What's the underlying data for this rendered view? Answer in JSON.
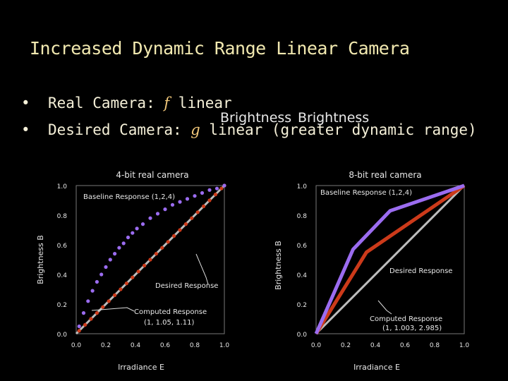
{
  "slide": {
    "title": "Increased Dynamic Range Linear Camera",
    "bullets": [
      {
        "dot": "•",
        "prefix": "Real Camera: ",
        "var": "f",
        "suffix": " linear"
      },
      {
        "dot": "•",
        "prefix": "Desired Camera: ",
        "var": "g",
        "suffix": " linear (greater dynamic range)"
      }
    ],
    "overlay_text_1": "Brightness",
    "overlay_text_2": "Brightness"
  },
  "colors": {
    "background": "#000000",
    "purple": "#9b6cf0",
    "red": "#cc3a1a",
    "gray": "#bdbdbd",
    "title": "#f2e9b0"
  },
  "chart_data": [
    {
      "type": "scatter",
      "title": "4-bit real camera",
      "xlabel": "Irradiance E",
      "ylabel": "Brightness B",
      "xlim": [
        0,
        1
      ],
      "ylim": [
        0,
        1
      ],
      "x_ticks": [
        "0.0",
        "0.2",
        "0.4",
        "0.6",
        "0.8",
        "1.0"
      ],
      "y_ticks": [
        "0.0",
        "0.2",
        "0.4",
        "0.6",
        "0.8",
        "1.0"
      ],
      "series": [
        {
          "name": "Baseline Response (1,2,4)",
          "color": "#9b6cf0",
          "x": [
            0.02,
            0.05,
            0.08,
            0.11,
            0.14,
            0.17,
            0.2,
            0.23,
            0.26,
            0.29,
            0.32,
            0.35,
            0.38,
            0.41,
            0.45,
            0.5,
            0.55,
            0.6,
            0.65,
            0.7,
            0.75,
            0.8,
            0.85,
            0.9,
            0.95,
            1.0
          ],
          "y": [
            0.05,
            0.14,
            0.22,
            0.29,
            0.35,
            0.4,
            0.45,
            0.5,
            0.54,
            0.58,
            0.61,
            0.65,
            0.68,
            0.71,
            0.74,
            0.78,
            0.81,
            0.84,
            0.87,
            0.89,
            0.91,
            0.93,
            0.95,
            0.97,
            0.98,
            1.0
          ]
        },
        {
          "name": "Desired Response",
          "color": "#cc3a1a",
          "x": [
            0.02,
            0.06,
            0.1,
            0.14,
            0.18,
            0.22,
            0.26,
            0.3,
            0.34,
            0.38,
            0.42,
            0.46,
            0.5,
            0.54,
            0.58,
            0.62,
            0.66,
            0.7,
            0.74,
            0.78,
            0.82,
            0.86,
            0.9,
            0.94,
            0.98,
            1.0
          ],
          "y": [
            0.02,
            0.06,
            0.1,
            0.14,
            0.18,
            0.22,
            0.26,
            0.3,
            0.34,
            0.38,
            0.42,
            0.46,
            0.5,
            0.54,
            0.58,
            0.62,
            0.66,
            0.7,
            0.74,
            0.78,
            0.82,
            0.86,
            0.9,
            0.94,
            0.98,
            1.0
          ]
        },
        {
          "name": "Computed Response",
          "color": "#bdbdbd",
          "x": [
            0.0,
            1.0
          ],
          "y": [
            0.0,
            1.0
          ]
        }
      ],
      "annotations": [
        {
          "text": "Baseline Response (1,2,4)"
        },
        {
          "text": "Desired Response"
        },
        {
          "text": "Computed Response"
        },
        {
          "text": "(1, 1.05, 1.11)"
        }
      ]
    },
    {
      "type": "line",
      "title": "8-bit real camera",
      "xlabel": "Irradiance E",
      "ylabel": "Brightness B",
      "xlim": [
        0,
        1
      ],
      "ylim": [
        0,
        1
      ],
      "x_ticks": [
        "0.0",
        "0.2",
        "0.4",
        "0.6",
        "0.8",
        "1.0"
      ],
      "y_ticks": [
        "0.0",
        "0.2",
        "0.4",
        "0.6",
        "0.8",
        "1.0"
      ],
      "series": [
        {
          "name": "Baseline Response (1,2,4)",
          "color": "#9b6cf0",
          "x": [
            0.0,
            0.25,
            0.5,
            1.0
          ],
          "y": [
            0.0,
            0.57,
            0.83,
            1.0
          ]
        },
        {
          "name": "Desired Response",
          "color": "#cc3a1a",
          "x": [
            0.0,
            0.34,
            1.0
          ],
          "y": [
            0.0,
            0.55,
            1.0
          ]
        },
        {
          "name": "Computed Response",
          "color": "#bdbdbd",
          "x": [
            0.0,
            1.0
          ],
          "y": [
            0.0,
            1.0
          ]
        }
      ],
      "annotations": [
        {
          "text": "Baseline Response (1,2,4)"
        },
        {
          "text": "Desired Response"
        },
        {
          "text": "Computed Response"
        },
        {
          "text": "(1, 1.003, 2.985)"
        }
      ]
    }
  ]
}
